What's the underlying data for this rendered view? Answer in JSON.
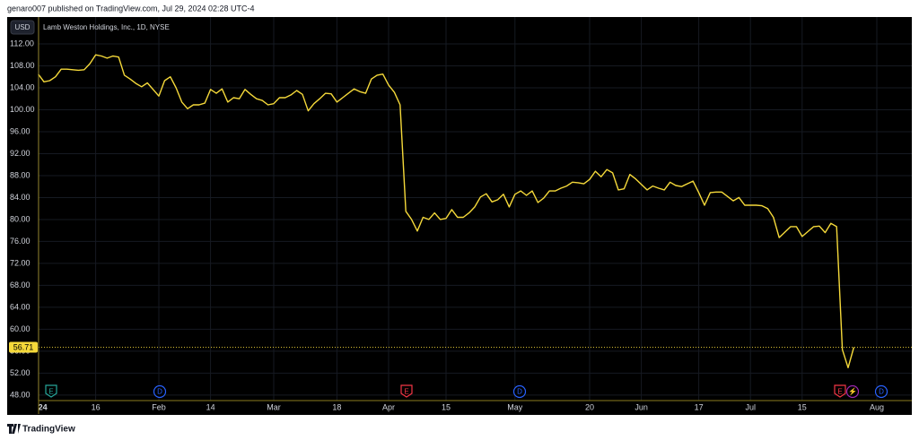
{
  "header": "genaro007 published on TradingView.com, Jul 29, 2024 02:28 UTC-4",
  "footer": "TradingView",
  "chart_data": {
    "type": "line",
    "title": "Lamb Weston Holdings, Inc., 1D, NYSE",
    "currency": "USD",
    "color": "#f5d93a",
    "last_value": 56.71,
    "ylim": [
      47,
      116.9
    ],
    "yticks": [
      {
        "value": 48,
        "label": "48.00"
      },
      {
        "value": 52,
        "label": "52.00"
      },
      {
        "value": 56,
        "label": "56.00"
      },
      {
        "value": 60,
        "label": "60.00"
      },
      {
        "value": 64,
        "label": "64.00"
      },
      {
        "value": 68,
        "label": "68.00"
      },
      {
        "value": 72,
        "label": "72.00"
      },
      {
        "value": 76,
        "label": "76.00"
      },
      {
        "value": 80,
        "label": "80.00"
      },
      {
        "value": 84,
        "label": "84.00"
      },
      {
        "value": 88,
        "label": "88.00"
      },
      {
        "value": 92,
        "label": "92.00"
      },
      {
        "value": 96,
        "label": "96.00"
      },
      {
        "value": 100,
        "label": "100.00"
      },
      {
        "value": 104,
        "label": "104.00"
      },
      {
        "value": 108,
        "label": "108.00"
      },
      {
        "value": 112,
        "label": "112.00"
      }
    ],
    "grid": true,
    "categories": [
      "24",
      null,
      null,
      null,
      null,
      null,
      null,
      null,
      null,
      null,
      "16",
      null,
      null,
      null,
      null,
      null,
      null,
      null,
      null,
      null,
      null,
      "Feb",
      null,
      null,
      null,
      null,
      null,
      null,
      null,
      null,
      "14",
      null,
      null,
      null,
      null,
      null,
      null,
      null,
      null,
      null,
      null,
      "Mar",
      null,
      null,
      null,
      null,
      null,
      null,
      null,
      null,
      null,
      null,
      "18",
      null,
      null,
      null,
      null,
      null,
      null,
      null,
      null,
      "Apr",
      null,
      null,
      null,
      null,
      null,
      null,
      null,
      null,
      null,
      "15",
      null,
      null,
      null,
      null,
      null,
      null,
      null,
      null,
      null,
      null,
      null,
      "May",
      null,
      null,
      null,
      null,
      null,
      null,
      null,
      null,
      null,
      null,
      null,
      null,
      "20",
      null,
      null,
      null,
      null,
      null,
      null,
      null,
      null,
      "Jun",
      null,
      null,
      null,
      null,
      null,
      null,
      null,
      null,
      null,
      "17",
      null,
      null,
      null,
      null,
      null,
      null,
      null,
      null,
      "Jul",
      null,
      null,
      null,
      null,
      null,
      null,
      null,
      null,
      "15",
      null,
      null,
      null,
      null,
      null,
      null,
      null,
      null,
      null,
      null,
      null,
      null,
      "Aug"
    ],
    "values": [
      106.5,
      105.1,
      105.3,
      106.0,
      107.4,
      107.4,
      107.3,
      107.2,
      107.3,
      108.4,
      110.0,
      109.8,
      109.4,
      109.8,
      109.6,
      106.3,
      105.6,
      104.8,
      104.2,
      104.9,
      103.7,
      102.5,
      105.3,
      106.0,
      104.0,
      101.4,
      100.2,
      100.9,
      100.9,
      101.2,
      103.7,
      103.0,
      103.8,
      101.4,
      102.2,
      102.0,
      103.7,
      102.8,
      102.0,
      101.7,
      100.9,
      101.1,
      102.2,
      102.2,
      102.7,
      103.5,
      102.8,
      99.8,
      101.1,
      102.0,
      103.0,
      102.9,
      101.4,
      102.2,
      103.0,
      103.8,
      103.3,
      103.0,
      105.6,
      106.3,
      106.5,
      104.5,
      103.2,
      100.9,
      81.5,
      80.0,
      77.9,
      80.4,
      80.0,
      81.2,
      80.0,
      80.2,
      81.8,
      80.4,
      80.4,
      81.2,
      82.3,
      84.1,
      84.7,
      83.2,
      83.6,
      84.6,
      82.3,
      84.6,
      85.2,
      84.4,
      85.2,
      83.1,
      83.9,
      85.2,
      85.2,
      85.7,
      86.1,
      86.8,
      86.7,
      86.5,
      87.3,
      88.8,
      87.8,
      89.1,
      88.5,
      85.4,
      85.6,
      88.2,
      87.4,
      86.4,
      85.4,
      86.1,
      85.7,
      85.4,
      86.8,
      86.2,
      86.0,
      86.5,
      87.0,
      84.9,
      82.6,
      84.9,
      85.0,
      85.0,
      84.2,
      83.4,
      84.0,
      82.6,
      82.6,
      82.6,
      82.5,
      82.0,
      80.4,
      76.7,
      77.7,
      78.7,
      78.7,
      76.9,
      77.8,
      78.7,
      78.8,
      77.6,
      79.3,
      78.7,
      56.3,
      53.0,
      56.71,
      null,
      null,
      null,
      null
    ],
    "events": [
      {
        "label": "E",
        "color": "#26a69a"
      },
      {
        "label": "D",
        "color": "#2962ff"
      },
      {
        "label": "E",
        "color": "#f23645"
      },
      {
        "label": "D",
        "color": "#2962ff"
      },
      {
        "label": "E",
        "color": "#f23645"
      },
      {
        "label": "⚡",
        "color": "#9c27b0"
      },
      {
        "label": "D",
        "color": "#2962ff"
      }
    ]
  }
}
